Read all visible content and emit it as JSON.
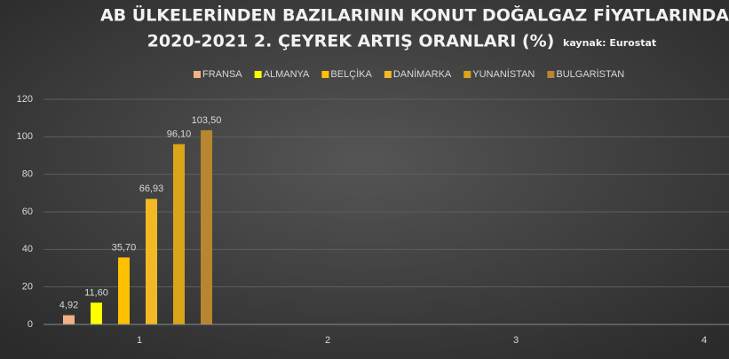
{
  "chart_data": {
    "type": "bar",
    "title": "AB ÜLKELERİNDEN BAZILARININ KONUT DOĞALGAZ FİYATLARINDA",
    "subtitle": "2020-2021 2. ÇEYREK ARTIŞ ORANLARI (%)",
    "annotation": "kaynak: Eurostat",
    "categories": [
      "1",
      "2",
      "3",
      "4"
    ],
    "series": [
      {
        "name": "FRANSA",
        "color": "#f4b183",
        "values": [
          4.92,
          null,
          null,
          null
        ],
        "value_labels": [
          "4,92",
          null,
          null,
          null
        ]
      },
      {
        "name": "ALMANYA",
        "color": "#ffff00",
        "values": [
          11.6,
          null,
          null,
          null
        ],
        "value_labels": [
          "11,60",
          null,
          null,
          null
        ]
      },
      {
        "name": "BELÇİKA",
        "color": "#ffc000",
        "values": [
          35.7,
          null,
          null,
          null
        ],
        "value_labels": [
          "35,70",
          null,
          null,
          null
        ]
      },
      {
        "name": "DANİMARKA",
        "color": "#f2b825",
        "values": [
          66.93,
          null,
          null,
          null
        ],
        "value_labels": [
          "66,93",
          null,
          null,
          null
        ]
      },
      {
        "name": "YUNANİSTAN",
        "color": "#dca418",
        "values": [
          96.1,
          null,
          null,
          null
        ],
        "value_labels": [
          "96,10",
          null,
          null,
          null
        ]
      },
      {
        "name": "BULGARİSTAN",
        "color": "#b8862e",
        "values": [
          103.5,
          null,
          null,
          null
        ],
        "value_labels": [
          "103,50",
          null,
          null,
          null
        ]
      }
    ],
    "ylim": [
      0,
      120
    ],
    "yticks": [
      0,
      20,
      40,
      60,
      80,
      100,
      120
    ],
    "grid": true,
    "legend": "top"
  }
}
